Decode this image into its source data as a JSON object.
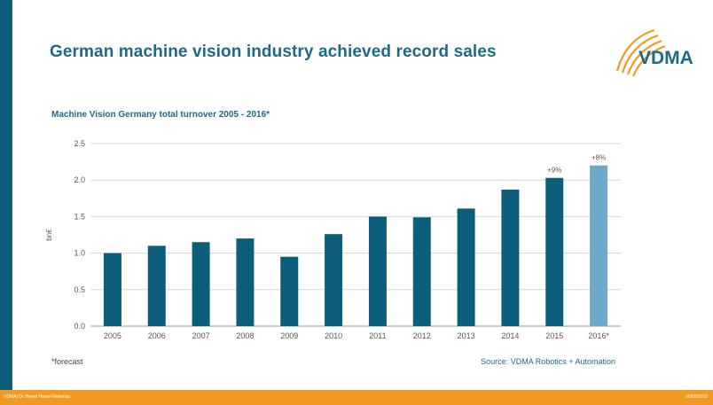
{
  "slide": {
    "title": "German machine vision industry achieved record sales",
    "logo_text": "VDMA",
    "footnote": "*forecast",
    "source": "Source: VDMA Robotics + Automation",
    "footer_left": "VDMA| Dr. Bernd Heizel-Nebeltau",
    "footer_right": "00/00/2016"
  },
  "colors": {
    "accent": "#0d5e7a",
    "forecast": "#6fa8c8",
    "footer": "#f29a1f",
    "title": "#1d6a86"
  },
  "chart_data": {
    "type": "bar",
    "title": "Machine Vision Germany total turnover 2005 - 2016*",
    "xlabel": "",
    "ylabel": "bn€",
    "ylim": [
      0,
      2.5
    ],
    "yticks": [
      "0.0",
      "0.5",
      "1.0",
      "1.5",
      "2.0",
      "2.5"
    ],
    "categories": [
      "2005",
      "2006",
      "2007",
      "2008",
      "2009",
      "2010",
      "2011",
      "2012",
      "2013",
      "2014",
      "2015",
      "2016*"
    ],
    "values": [
      1.0,
      1.1,
      1.15,
      1.2,
      0.95,
      1.26,
      1.5,
      1.49,
      1.61,
      1.87,
      2.03,
      2.2
    ],
    "forecast": [
      false,
      false,
      false,
      false,
      false,
      false,
      false,
      false,
      false,
      false,
      false,
      true
    ],
    "annotations": [
      "",
      "",
      "",
      "",
      "",
      "",
      "",
      "",
      "",
      "",
      "+9%",
      "+8%"
    ],
    "grid": true
  }
}
